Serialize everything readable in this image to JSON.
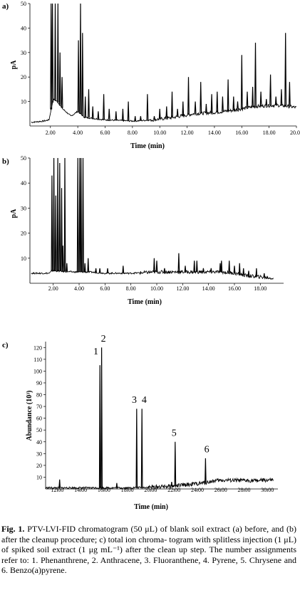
{
  "chart_data": [
    {
      "panel": "a)",
      "type": "line",
      "subtitle": "",
      "xlabel": "Time (min)",
      "ylabel": "pA",
      "xlim": [
        0.5,
        20.0
      ],
      "ylim": [
        0,
        50
      ],
      "x_ticks": [
        "2.00",
        "4.00",
        "6.00",
        "8.00",
        "10.00",
        "12.00",
        "14.00",
        "16.00",
        "18.00",
        "20.00"
      ],
      "y_ticks": [
        "10",
        "20",
        "30",
        "40",
        "50"
      ],
      "grid": false,
      "baseline": [
        [
          0.6,
          1.5
        ],
        [
          1.5,
          2.0
        ],
        [
          1.9,
          2.5
        ],
        [
          2.2,
          11
        ],
        [
          2.5,
          10
        ],
        [
          2.9,
          7
        ],
        [
          3.5,
          4
        ],
        [
          4.0,
          6
        ],
        [
          4.5,
          3.5
        ],
        [
          6.0,
          2.5
        ],
        [
          8.0,
          2.0
        ],
        [
          9.5,
          2.5
        ],
        [
          11.0,
          3.5
        ],
        [
          12.5,
          5
        ],
        [
          14.0,
          5.5
        ],
        [
          15.5,
          6.5
        ],
        [
          17.0,
          8
        ],
        [
          18.5,
          8.5
        ],
        [
          19.5,
          8
        ],
        [
          20.0,
          7.5
        ]
      ],
      "peaks": [
        [
          2.05,
          50
        ],
        [
          2.15,
          50
        ],
        [
          2.35,
          50
        ],
        [
          2.55,
          50
        ],
        [
          2.7,
          30
        ],
        [
          2.85,
          20
        ],
        [
          4.05,
          35
        ],
        [
          4.2,
          50
        ],
        [
          4.35,
          38
        ],
        [
          4.55,
          12
        ],
        [
          4.8,
          15
        ],
        [
          5.1,
          8
        ],
        [
          5.5,
          6
        ],
        [
          5.9,
          13
        ],
        [
          6.3,
          7
        ],
        [
          6.8,
          6
        ],
        [
          7.3,
          7
        ],
        [
          7.7,
          10
        ],
        [
          8.2,
          4
        ],
        [
          8.6,
          4
        ],
        [
          9.1,
          13
        ],
        [
          9.6,
          4
        ],
        [
          10.0,
          7
        ],
        [
          10.5,
          8
        ],
        [
          10.9,
          14
        ],
        [
          11.3,
          7
        ],
        [
          11.7,
          10
        ],
        [
          12.1,
          20
        ],
        [
          12.6,
          10
        ],
        [
          13.0,
          18
        ],
        [
          13.4,
          9
        ],
        [
          13.8,
          13
        ],
        [
          14.2,
          14
        ],
        [
          14.6,
          12
        ],
        [
          15.0,
          19
        ],
        [
          15.4,
          12
        ],
        [
          15.7,
          10
        ],
        [
          16.0,
          29
        ],
        [
          16.4,
          14
        ],
        [
          16.8,
          16
        ],
        [
          17.0,
          34
        ],
        [
          17.4,
          14
        ],
        [
          17.8,
          11
        ],
        [
          18.1,
          21
        ],
        [
          18.5,
          12
        ],
        [
          18.9,
          15
        ],
        [
          19.2,
          38
        ],
        [
          19.5,
          18
        ]
      ]
    },
    {
      "panel": "b)",
      "type": "line",
      "subtitle": "",
      "xlabel": "Time (min)",
      "ylabel": "pA",
      "xlim": [
        0.2,
        19.8
      ],
      "ylim": [
        0,
        50
      ],
      "x_ticks": [
        "2.00",
        "4.00",
        "6.00",
        "8.00",
        "10.00",
        "12.00",
        "14.00",
        "16.00",
        "18.00"
      ],
      "y_ticks": [
        "10",
        "20",
        "30",
        "40",
        "50"
      ],
      "grid": false,
      "baseline": [
        [
          0.3,
          4.0
        ],
        [
          1.7,
          4.0
        ],
        [
          1.9,
          5.0
        ],
        [
          3.6,
          4.5
        ],
        [
          4.8,
          4.5
        ],
        [
          6.0,
          4.0
        ],
        [
          8.0,
          4.0
        ],
        [
          10.0,
          4.5
        ],
        [
          12.0,
          4.5
        ],
        [
          14.0,
          4.5
        ],
        [
          15.0,
          4.5
        ],
        [
          16.0,
          4.0
        ],
        [
          17.0,
          3.0
        ],
        [
          18.0,
          2.5
        ],
        [
          19.0,
          2.0
        ]
      ],
      "peaks": [
        [
          1.9,
          43
        ],
        [
          2.05,
          50
        ],
        [
          2.2,
          35
        ],
        [
          2.35,
          50
        ],
        [
          2.5,
          48
        ],
        [
          2.65,
          38
        ],
        [
          2.75,
          15
        ],
        [
          2.9,
          50
        ],
        [
          3.05,
          8
        ],
        [
          3.9,
          50
        ],
        [
          4.05,
          50
        ],
        [
          4.15,
          50
        ],
        [
          4.3,
          50
        ],
        [
          4.45,
          8
        ],
        [
          4.7,
          10
        ],
        [
          5.3,
          6
        ],
        [
          5.6,
          6
        ],
        [
          6.2,
          6
        ],
        [
          7.4,
          7
        ],
        [
          9.8,
          10
        ],
        [
          10.0,
          9
        ],
        [
          10.6,
          6
        ],
        [
          11.7,
          12
        ],
        [
          12.2,
          7
        ],
        [
          12.9,
          9
        ],
        [
          13.1,
          9
        ],
        [
          13.6,
          6
        ],
        [
          14.2,
          6
        ],
        [
          14.9,
          8
        ],
        [
          15.0,
          9
        ],
        [
          15.6,
          9
        ],
        [
          16.0,
          7
        ],
        [
          16.4,
          8
        ],
        [
          16.7,
          6
        ],
        [
          17.1,
          5
        ],
        [
          17.7,
          6
        ],
        [
          18.3,
          4
        ]
      ]
    },
    {
      "panel": "c)",
      "type": "line",
      "subtitle": "",
      "xlabel": "Time (min)",
      "ylabel": "Abundance (10³)",
      "xlim": [
        11.0,
        30.9
      ],
      "ylim": [
        0,
        125
      ],
      "x_ticks": [
        "12.00",
        "14.00",
        "16.00",
        "18.00",
        "20.00",
        "22.00",
        "24.00",
        "26.00",
        "28.00",
        "30.00"
      ],
      "y_ticks": [
        "10",
        "20",
        "30",
        "40",
        "50",
        "60",
        "70",
        "80",
        "90",
        "100",
        "110",
        "120"
      ],
      "grid": false,
      "baseline": [
        [
          11.0,
          1.0
        ],
        [
          14.0,
          1.0
        ],
        [
          18.0,
          1.0
        ],
        [
          20.0,
          1.5
        ],
        [
          22.0,
          2.5
        ],
        [
          23.5,
          4.0
        ],
        [
          24.5,
          5.0
        ],
        [
          25.5,
          7.0
        ],
        [
          26.5,
          7.5
        ],
        [
          28.0,
          7.0
        ],
        [
          30.5,
          7.5
        ]
      ],
      "peaks": [
        [
          12.2,
          8
        ],
        [
          15.65,
          105
        ],
        [
          15.8,
          120
        ],
        [
          17.1,
          5
        ],
        [
          18.8,
          68
        ],
        [
          19.25,
          68
        ],
        [
          21.8,
          6
        ],
        [
          22.1,
          40
        ],
        [
          24.7,
          26
        ]
      ],
      "annotations": [
        "1",
        "2",
        "3",
        "4",
        "5",
        "6"
      ]
    }
  ],
  "caption": {
    "label": "Fig. 1.",
    "lines": [
      "PTV-LVI-FID chromatogram (50 μL) of blank soil extract",
      "(a) before, and (b) after the cleanup procedure; c) total ion chroma-",
      "togram with splitless injection (1 μL) of spiked soil extract (1 μg",
      "mL⁻¹) after the clean up step. The number assignments refer to: 1.",
      "Phenanthrene, 2. Anthracene, 3. Fluoranthene, 4. Pyrene, 5. Chrysene",
      "and 6. Benzo(a)pyrene."
    ]
  }
}
